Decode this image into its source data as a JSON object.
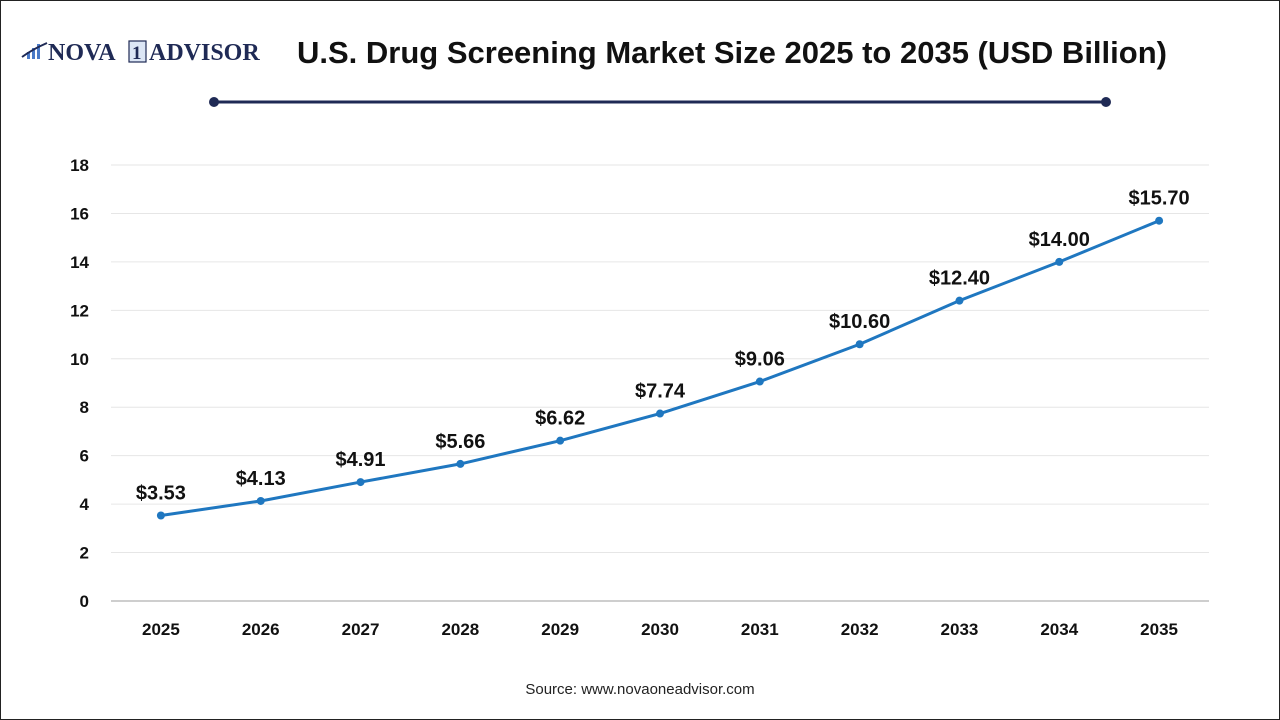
{
  "logo": {
    "text": "NOVA 1 ADVISOR"
  },
  "source": "Source: www.novaoneadvisor.com",
  "colors": {
    "line": "#1f77c0",
    "title": "#111111",
    "decor": "#1f2a55",
    "grid": "#e6e6e6"
  },
  "chart_data": {
    "type": "line",
    "title": "U.S. Drug Screening Market Size 2025 to 2035 (USD Billion)",
    "categories": [
      "2025",
      "2026",
      "2027",
      "2028",
      "2029",
      "2030",
      "2031",
      "2032",
      "2033",
      "2034",
      "2035"
    ],
    "values": [
      3.53,
      4.13,
      4.91,
      5.66,
      6.62,
      7.74,
      9.06,
      10.6,
      12.4,
      14.0,
      15.7
    ],
    "data_labels": [
      "$3.53",
      "$4.13",
      "$4.91",
      "$5.66",
      "$6.62",
      "$7.74",
      "$9.06",
      "$10.60",
      "$12.40",
      "$14.00",
      "$15.70"
    ],
    "yticks": [
      0,
      2,
      4,
      6,
      8,
      10,
      12,
      14,
      16,
      18
    ],
    "ylim": [
      0,
      18
    ],
    "xlabel": "",
    "ylabel": "",
    "grid": "horizontal",
    "legend": "none"
  }
}
